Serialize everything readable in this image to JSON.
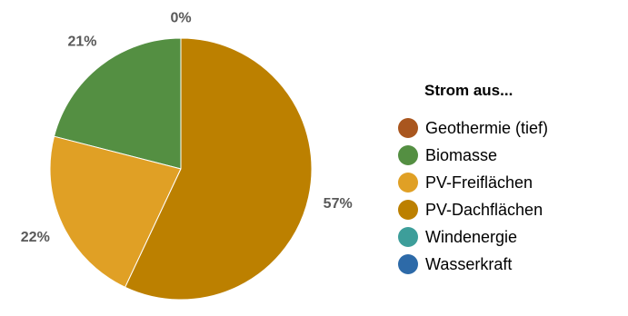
{
  "chart_data": {
    "type": "pie",
    "legend_title": "Strom aus...",
    "legend_position": "right",
    "slices": [
      {
        "name": "Geothermie (tief)",
        "value": 0,
        "label": "",
        "color": "#a9561e"
      },
      {
        "name": "Biomasse",
        "value": 21,
        "label": "21%",
        "color": "#548f42"
      },
      {
        "name": "PV-Freiflächen",
        "value": 22,
        "label": "22%",
        "color": "#e0a025"
      },
      {
        "name": "PV-Dachflächen",
        "value": 57,
        "label": "57%",
        "color": "#bc8000"
      },
      {
        "name": "Windenergie",
        "value": 0,
        "label": "",
        "color": "#3d9e9a"
      },
      {
        "name": "Wasserkraft",
        "value": 0,
        "label": "0%",
        "color": "#2d6aa8"
      }
    ]
  }
}
